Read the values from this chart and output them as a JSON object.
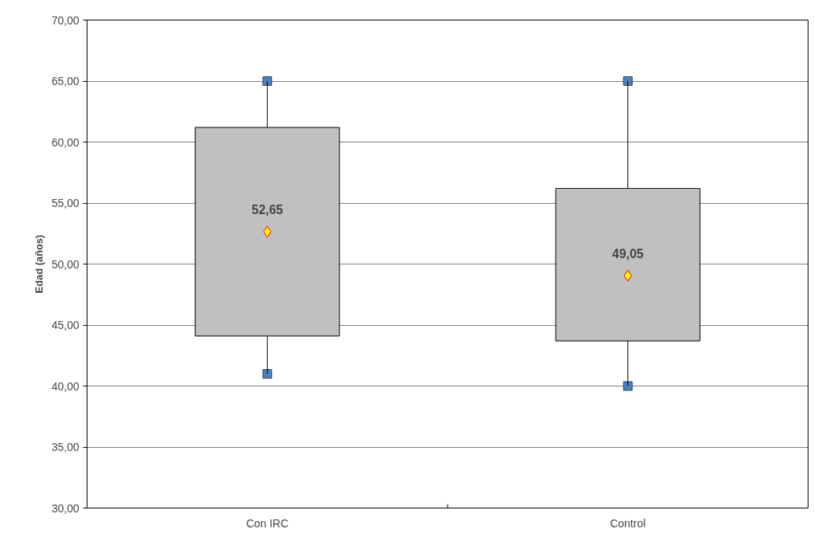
{
  "chart_data": {
    "type": "box",
    "ylabel": "Edad (años)",
    "categories": [
      "Con IRC",
      "Control"
    ],
    "boxes": [
      {
        "low": 41,
        "q1": 44.1,
        "q3": 61.2,
        "high": 65,
        "mean": 52.65
      },
      {
        "low": 40,
        "q1": 43.7,
        "q3": 56.2,
        "high": 65,
        "mean": 49.05
      }
    ],
    "color": "#c0c0c0",
    "series": [
      {
        "type": "scatter",
        "x": [
          "Con IRC",
          "Control"
        ],
        "values": [
          41,
          40
        ],
        "color": "#4f81bd",
        "marker": "square"
      },
      {
        "type": "scatter",
        "x": [
          "Con IRC",
          "Control"
        ],
        "values": [
          65,
          65
        ],
        "color": "#4f81bd",
        "marker": "square"
      }
    ],
    "ylim": [
      30,
      70
    ],
    "yticks": [
      {
        "value": 30,
        "label": "30,00"
      },
      {
        "value": 35,
        "label": "35,00"
      },
      {
        "value": 40,
        "label": "40,00"
      },
      {
        "value": 45,
        "label": "45,00"
      },
      {
        "value": 50,
        "label": "50,00"
      },
      {
        "value": 55,
        "label": "55,00"
      },
      {
        "value": 60,
        "label": "60,00"
      },
      {
        "value": 65,
        "label": "65,00"
      },
      {
        "value": 70,
        "label": "70,00"
      }
    ],
    "grid": "y",
    "annotations": [
      "52,65",
      "49,05"
    ]
  }
}
